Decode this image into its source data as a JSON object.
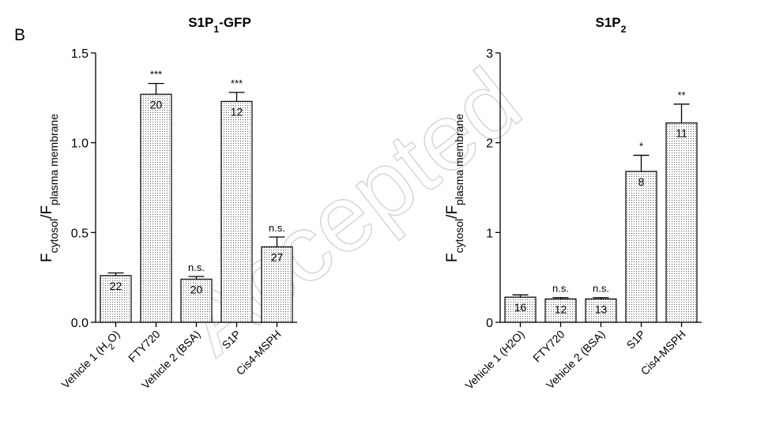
{
  "panel_label": "B",
  "watermark": "Accepted",
  "chart_data": [
    {
      "type": "bar",
      "title": "S1P",
      "title_sub": "1",
      "title_suffix": "-GFP",
      "ylabel": {
        "main1": "F",
        "sub1": "cytosol",
        "slash": "/F",
        "sub2": "plasma membrane"
      },
      "ylim": [
        0,
        1.5
      ],
      "yticks": [
        0.0,
        0.5,
        1.0,
        1.5
      ],
      "ytick_labels": [
        "0.0",
        "0.5",
        "1.0",
        "1.5"
      ],
      "categories": [
        {
          "label": "Vehicle 1 (H",
          "sub": "2",
          "suffix": "O)"
        },
        {
          "label": "FTY720",
          "sub": "",
          "suffix": ""
        },
        {
          "label": "Vehicle 2 (BSA)",
          "sub": "",
          "suffix": ""
        },
        {
          "label": "S1P",
          "sub": "",
          "suffix": ""
        },
        {
          "label": "Cis4-MSPH",
          "sub": "",
          "suffix": ""
        }
      ],
      "values": [
        0.26,
        1.27,
        0.24,
        1.23,
        0.42
      ],
      "errors": [
        0.015,
        0.06,
        0.015,
        0.05,
        0.055
      ],
      "n": [
        "22",
        "20",
        "20",
        "12",
        "27"
      ],
      "significance": [
        "",
        "***",
        "n.s.",
        "***",
        "n.s."
      ]
    },
    {
      "type": "bar",
      "title": "S1P",
      "title_sub": "2",
      "title_suffix": "",
      "ylabel": {
        "main1": "F",
        "sub1": "cytosol",
        "slash": "/F",
        "sub2": "plasma membrane"
      },
      "ylim": [
        0,
        3
      ],
      "yticks": [
        0,
        1,
        2,
        3
      ],
      "ytick_labels": [
        "0",
        "1",
        "2",
        "3"
      ],
      "categories": [
        {
          "label": "Vehicle 1 (H2O)",
          "sub": "",
          "suffix": ""
        },
        {
          "label": "FTY720",
          "sub": "",
          "suffix": ""
        },
        {
          "label": "Vehicle 2 (BSA)",
          "sub": "",
          "suffix": ""
        },
        {
          "label": "S1P",
          "sub": "",
          "suffix": ""
        },
        {
          "label": "Cis4-MSPH",
          "sub": "",
          "suffix": ""
        }
      ],
      "values": [
        0.28,
        0.26,
        0.26,
        1.68,
        2.22
      ],
      "errors": [
        0.025,
        0.015,
        0.015,
        0.18,
        0.21
      ],
      "n": [
        "16",
        "12",
        "13",
        "8",
        "11"
      ],
      "significance": [
        "",
        "n.s.",
        "n.s.",
        "*",
        "**"
      ]
    }
  ]
}
